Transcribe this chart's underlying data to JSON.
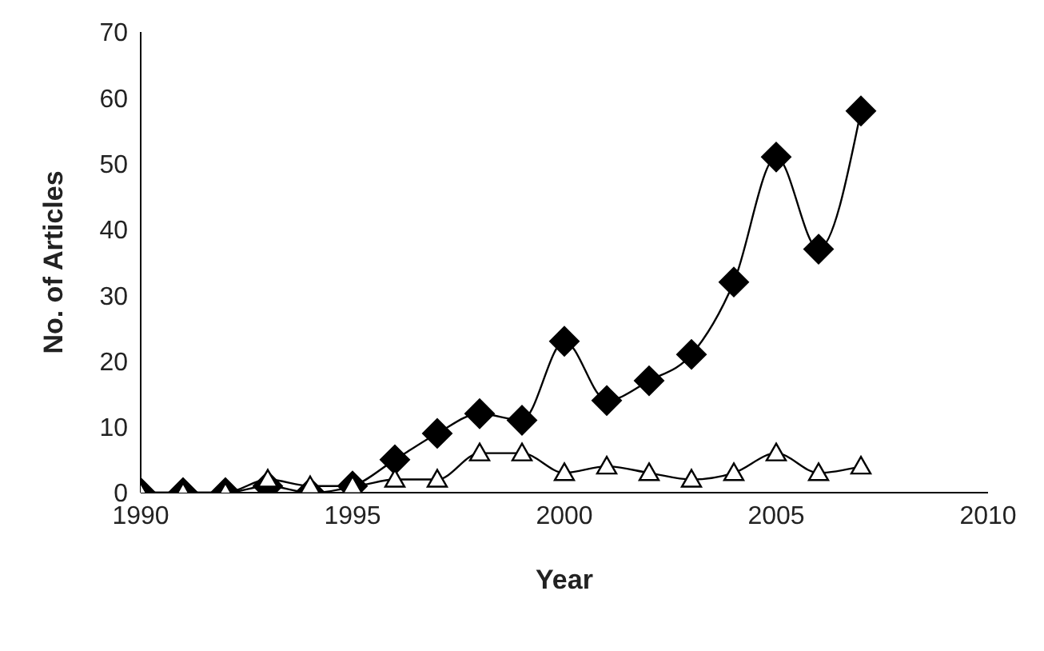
{
  "chart_data": {
    "type": "line",
    "xlabel": "Year",
    "ylabel": "No. of Articles",
    "x": [
      1990,
      1991,
      1992,
      1993,
      1994,
      1995,
      1996,
      1997,
      1998,
      1999,
      2000,
      2001,
      2002,
      2003,
      2004,
      2005,
      2006,
      2007
    ],
    "series": [
      {
        "color": "#000000",
        "marker": "diamond",
        "values": [
          0,
          0,
          0,
          1,
          0,
          1,
          5,
          9,
          12,
          11,
          23,
          14,
          17,
          21,
          32,
          51,
          37,
          58
        ]
      },
      {
        "color": "#000000",
        "marker": "triangle",
        "values": [
          0,
          0,
          0,
          2,
          1,
          1,
          2,
          2,
          6,
          6,
          3,
          4,
          3,
          2,
          3,
          6,
          3,
          4
        ]
      }
    ],
    "xlim": [
      1990,
      2010
    ],
    "xticks": [
      1990,
      1995,
      2000,
      2005,
      2010
    ],
    "ylim": [
      0,
      70
    ],
    "yticks": [
      0,
      10,
      20,
      30,
      40,
      50,
      60,
      70
    ],
    "grid": false,
    "legend": false
  }
}
